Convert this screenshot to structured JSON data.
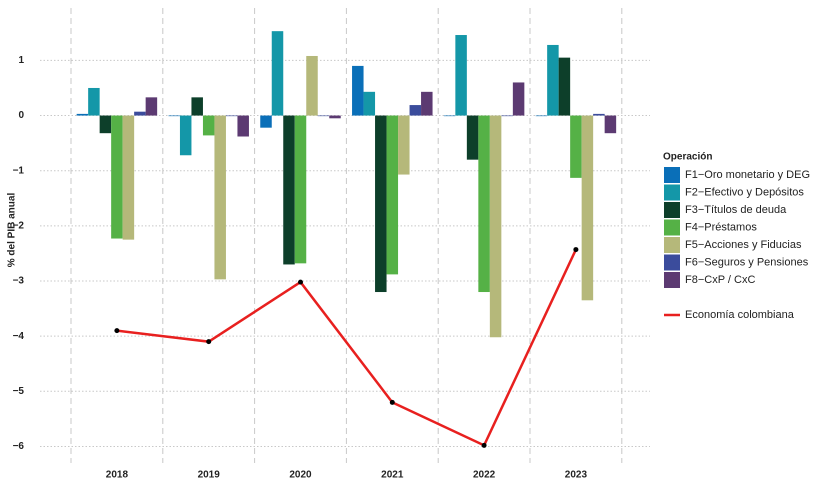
{
  "chart_data": {
    "type": "bar",
    "y_label": "% del PIB anual",
    "legend_title": "Operación",
    "categories": [
      "2018",
      "2019",
      "2020",
      "2021",
      "2022",
      "2023"
    ],
    "series": [
      {
        "name": "F1−Oro monetario y DEG",
        "color": "#0a6fb8",
        "values": [
          0.03,
          0.0,
          -0.22,
          0.9,
          0.0,
          0.0
        ]
      },
      {
        "name": "F2−Efectivo y Depósitos",
        "color": "#1497a8",
        "values": [
          0.5,
          -0.72,
          1.53,
          0.43,
          1.46,
          1.28
        ]
      },
      {
        "name": "F3−Títulos de deuda",
        "color": "#0d3f2a",
        "values": [
          -0.32,
          0.33,
          -2.7,
          -3.2,
          -0.8,
          1.05
        ]
      },
      {
        "name": "F4−Préstamos",
        "color": "#55b146",
        "values": [
          -2.23,
          -0.36,
          -2.68,
          -2.88,
          -3.2,
          -1.13
        ]
      },
      {
        "name": "F5−Acciones y Fiducias",
        "color": "#b5b87a",
        "values": [
          -2.25,
          -2.97,
          1.08,
          -1.07,
          -4.02,
          -3.35
        ]
      },
      {
        "name": "F6−Seguros y Pensiones",
        "color": "#3b4c9c",
        "values": [
          0.07,
          0.0,
          0.0,
          0.19,
          0.0,
          0.03
        ]
      },
      {
        "name": "F8−CxP / CxC",
        "color": "#5c3a72",
        "values": [
          0.33,
          -0.38,
          -0.05,
          0.43,
          0.6,
          -0.32
        ]
      }
    ],
    "line_series": {
      "name": "Economía colombiana",
      "color": "#e8201f",
      "values": [
        -3.9,
        -4.1,
        -3.02,
        -5.2,
        -5.98,
        -2.43
      ]
    },
    "ylim": [
      -6.3,
      1.95
    ],
    "yticks": [
      {
        "value": -6,
        "label": "−6"
      },
      {
        "value": -5,
        "label": "−5"
      },
      {
        "value": -4,
        "label": "−4"
      },
      {
        "value": -3,
        "label": "−3"
      },
      {
        "value": -2,
        "label": "−2"
      },
      {
        "value": -1,
        "label": "−1"
      },
      0,
      1
    ],
    "grid": true
  }
}
